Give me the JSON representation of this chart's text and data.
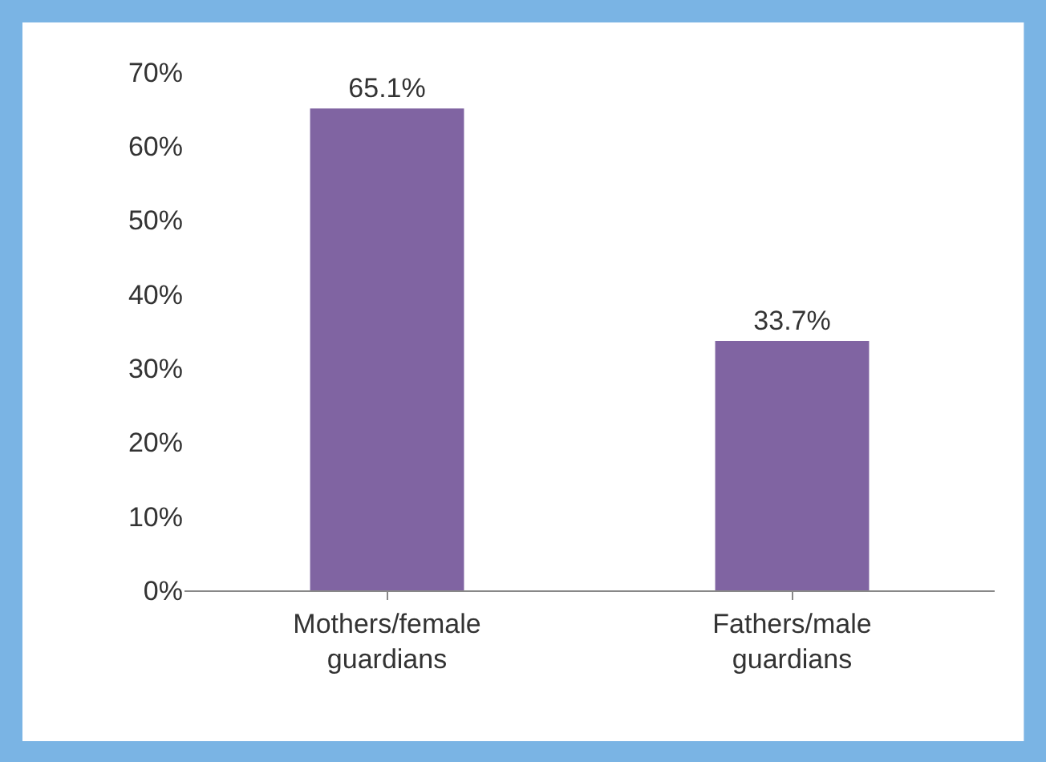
{
  "chart_data": {
    "type": "bar",
    "categories": [
      "Mothers/female guardians",
      "Fathers/male guardians"
    ],
    "values": [
      65.1,
      33.7
    ],
    "value_labels": [
      "65.1%",
      "33.7%"
    ],
    "color": "#8064a2",
    "ylim": [
      0,
      70
    ],
    "yticks": [
      {
        "value": 0,
        "label": "0%"
      },
      {
        "value": 10,
        "label": "10%"
      },
      {
        "value": 20,
        "label": "20%"
      },
      {
        "value": 30,
        "label": "30%"
      },
      {
        "value": 40,
        "label": "40%"
      },
      {
        "value": 50,
        "label": "50%"
      },
      {
        "value": 60,
        "label": "60%"
      },
      {
        "value": 70,
        "label": "70%"
      }
    ],
    "legend": false
  }
}
